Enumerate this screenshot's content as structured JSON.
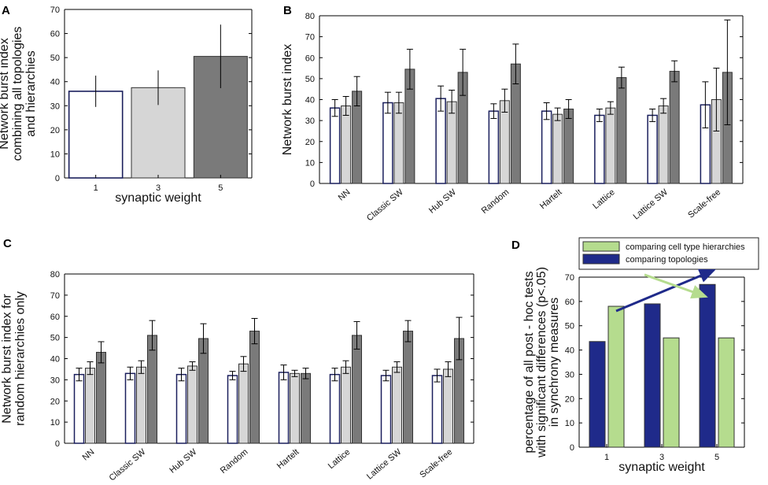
{
  "panels": {
    "A": "A",
    "B": "B",
    "C": "C",
    "D": "D"
  },
  "chart_data": [
    {
      "panel": "A",
      "type": "bar",
      "title": "",
      "xlabel": "synaptic weight",
      "ylabel_lines": [
        "Network burst index",
        "combining all topologies",
        "and hierarchies"
      ],
      "categories": [
        "1",
        "3",
        "5"
      ],
      "values": [
        36,
        37.5,
        50.5
      ],
      "errors": [
        6.5,
        7.2,
        13.2
      ],
      "colors": [
        "#ffffff",
        "#d6d6d6",
        "#7a7a7a"
      ],
      "yticks": [
        0,
        10,
        20,
        30,
        40,
        50,
        60,
        70
      ],
      "ylim": [
        0,
        70
      ]
    },
    {
      "panel": "B",
      "type": "bar",
      "title": "",
      "xlabel": "",
      "ylabel_lines": [
        "Network burst index"
      ],
      "categories": [
        "NN",
        "Classic SW",
        "Hub SW",
        "Random",
        "Hartelt",
        "Lattice",
        "Lattice SW",
        "Scale-free"
      ],
      "series": [
        {
          "name": "synaptic weight 1",
          "color": "#ffffff",
          "values": [
            36,
            38.5,
            40.5,
            34.5,
            34.5,
            32.5,
            32.5,
            37.5
          ],
          "errors": [
            4,
            5,
            6,
            3.5,
            4,
            3,
            3,
            11
          ]
        },
        {
          "name": "synaptic weight 3",
          "color": "#d6d6d6",
          "values": [
            37,
            38.5,
            39,
            39.5,
            33,
            36,
            37,
            40
          ],
          "errors": [
            4.5,
            5,
            5.5,
            5.5,
            3,
            3,
            3.5,
            15
          ]
        },
        {
          "name": "synaptic weight 5",
          "color": "#7a7a7a",
          "values": [
            44,
            54.5,
            53,
            57,
            35.5,
            50.5,
            53.5,
            53
          ],
          "errors": [
            7,
            9.5,
            11,
            9.5,
            4.5,
            5,
            5,
            25
          ]
        }
      ],
      "yticks": [
        0,
        10,
        20,
        30,
        40,
        50,
        60,
        70,
        80
      ],
      "ylim": [
        0,
        80
      ]
    },
    {
      "panel": "C",
      "type": "bar",
      "title": "",
      "xlabel": "",
      "ylabel_lines": [
        "Network burst index for",
        "random hierarchies only"
      ],
      "categories": [
        "NN",
        "Classic SW",
        "Hub SW",
        "Random",
        "Hartelt",
        "Lattice",
        "Lattice SW",
        "Scale-free"
      ],
      "series": [
        {
          "name": "synaptic weight 1",
          "color": "#ffffff",
          "values": [
            32.5,
            33,
            32.5,
            32,
            33.5,
            32.5,
            32,
            32
          ],
          "errors": [
            3,
            3,
            3,
            2,
            3.5,
            3,
            2.5,
            3
          ]
        },
        {
          "name": "synaptic weight 3",
          "color": "#d6d6d6",
          "values": [
            35.5,
            36,
            36.5,
            37.5,
            33,
            36,
            36,
            35
          ],
          "errors": [
            3,
            3,
            2,
            3.5,
            1.5,
            3,
            2.5,
            3.5
          ]
        },
        {
          "name": "synaptic weight 5",
          "color": "#7a7a7a",
          "values": [
            43,
            51,
            49.5,
            53,
            33,
            51,
            53,
            49.5
          ],
          "errors": [
            5,
            7,
            7,
            6,
            2.5,
            6.5,
            5,
            10
          ]
        }
      ],
      "yticks": [
        0,
        10,
        20,
        30,
        40,
        50,
        60,
        70,
        80
      ],
      "ylim": [
        0,
        80
      ]
    },
    {
      "panel": "D",
      "type": "bar",
      "title": "",
      "xlabel": "synaptic weight",
      "ylabel_lines": [
        "percentage of all post - hoc tests",
        "with significant differences (p<.05)",
        "in synchrony measures"
      ],
      "categories": [
        "1",
        "3",
        "5"
      ],
      "series": [
        {
          "name": "comparing topologies",
          "color": "#1f2a8a",
          "values": [
            43.5,
            59,
            67
          ]
        },
        {
          "name": "comparing cell type hierarchies",
          "color": "#b5dc8e",
          "values": [
            58,
            45,
            45
          ]
        }
      ],
      "legend": [
        "comparing cell type hierarchies",
        "comparing topologies"
      ],
      "yticks": [
        0,
        10,
        20,
        30,
        40,
        50,
        60,
        70
      ],
      "ylim": [
        0,
        70
      ]
    }
  ]
}
